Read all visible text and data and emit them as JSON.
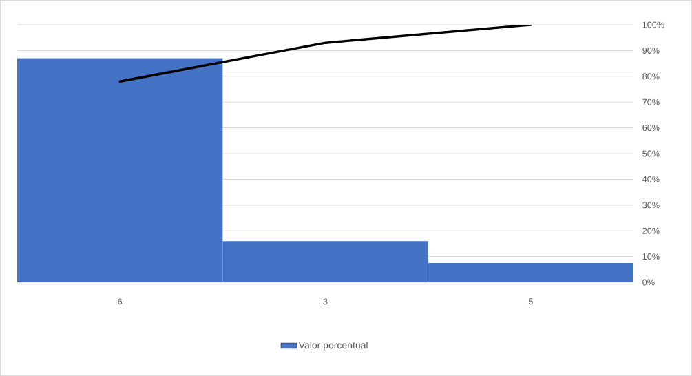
{
  "chart_data": {
    "type": "bar",
    "categories": [
      "6",
      "3",
      "5"
    ],
    "series": [
      {
        "name": "Valor porcentual",
        "color": "#4472c4",
        "axis": "y2",
        "values": [
          87,
          16,
          7.5
        ]
      },
      {
        "type": "line",
        "axis": "y2",
        "color": "#000000",
        "values": [
          78,
          93,
          100
        ]
      }
    ],
    "y2lim": [
      0,
      100
    ],
    "y2ticks": [
      {
        "value": 0,
        "label": "0%"
      },
      {
        "value": 10,
        "label": "10%"
      },
      {
        "value": 20,
        "label": "20%"
      },
      {
        "value": 30,
        "label": "30%"
      },
      {
        "value": 40,
        "label": "40%"
      },
      {
        "value": 50,
        "label": "50%"
      },
      {
        "value": 60,
        "label": "60%"
      },
      {
        "value": 70,
        "label": "70%"
      },
      {
        "value": 80,
        "label": "80%"
      },
      {
        "value": 90,
        "label": "90%"
      },
      {
        "value": 100,
        "label": "100%"
      }
    ],
    "grid": true,
    "legend": "bottom"
  }
}
